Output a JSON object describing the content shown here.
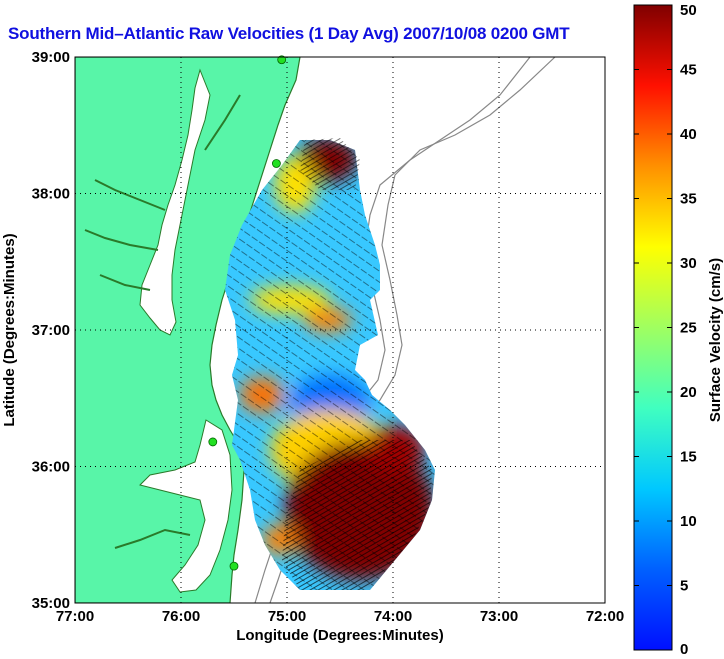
{
  "title": "Southern Mid–Atlantic Raw Velocities (1 Day Avg) 2007/10/08 0200 GMT",
  "map": {
    "xlabel": "Longitude (Degrees:Minutes)",
    "ylabel": "Latitude (Degrees:Minutes)",
    "lon_range": [
      -77,
      -72
    ],
    "lat_range": [
      35,
      39
    ],
    "lon_ticks": [
      "77:00",
      "76:00",
      "75:00",
      "74:00",
      "73:00",
      "72:00"
    ],
    "lat_ticks": [
      "35:00",
      "36:00",
      "37:00",
      "38:00",
      "39:00"
    ],
    "grid": true,
    "colors": {
      "land": "#58f5a8",
      "coastline": "#2a7a2a",
      "bathymetry": "#888888",
      "sites": "#22e022"
    }
  },
  "colorbar": {
    "label": "Surface Velocity (cm/s)",
    "range": [
      0,
      50
    ],
    "ticks": [
      "0",
      "5",
      "10",
      "15",
      "20",
      "25",
      "30",
      "35",
      "40",
      "45",
      "50"
    ],
    "colormap": "jet"
  },
  "chart_data": {
    "type": "heatmap",
    "title": "Southern Mid–Atlantic Raw Velocities (1 Day Avg) 2007/10/08 0200 GMT",
    "xlabel": "Longitude (Degrees:Minutes)",
    "ylabel": "Latitude (Degrees:Minutes)",
    "xlim": [
      -77,
      -72
    ],
    "ylim": [
      35,
      39
    ],
    "value_range": [
      0,
      50
    ],
    "units": "cm/s",
    "regions": [
      {
        "lon": -74.6,
        "lat": 38.25,
        "value": 50
      },
      {
        "lon": -74.9,
        "lat": 38.0,
        "value": 28
      },
      {
        "lon": -75.1,
        "lat": 37.6,
        "value": 14
      },
      {
        "lon": -75.1,
        "lat": 37.2,
        "value": 30
      },
      {
        "lon": -74.7,
        "lat": 37.0,
        "value": 38
      },
      {
        "lon": -75.2,
        "lat": 36.5,
        "value": 35
      },
      {
        "lon": -74.9,
        "lat": 36.7,
        "value": 10
      },
      {
        "lon": -74.3,
        "lat": 36.1,
        "value": 50
      },
      {
        "lon": -74.5,
        "lat": 35.5,
        "value": 50
      },
      {
        "lon": -75.0,
        "lat": 35.8,
        "value": 14
      }
    ],
    "sites": [
      {
        "lon": -75.05,
        "lat": 38.98
      },
      {
        "lon": -75.1,
        "lat": 38.22
      },
      {
        "lon": -75.7,
        "lat": 36.18
      },
      {
        "lon": -75.5,
        "lat": 35.27
      }
    ]
  }
}
